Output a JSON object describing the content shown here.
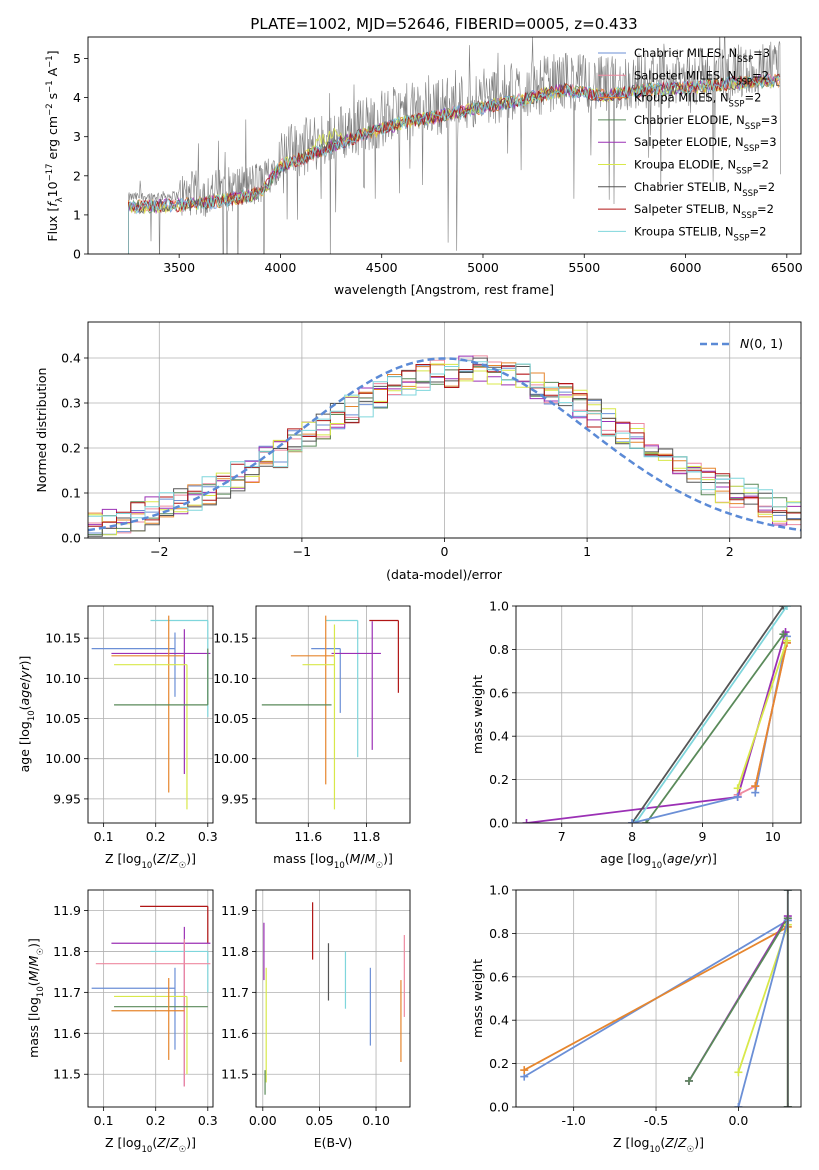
{
  "colors": {
    "Chabrier MILES": "#6b8fd6",
    "Salpeter MILES": "#ee8aa0",
    "Kroupa MILES": "#e6862e",
    "Chabrier ELODIE": "#5a8a5a",
    "Salpeter ELODIE": "#9b30b5",
    "Kroupa ELODIE": "#d8e84a",
    "Chabrier STELIB": "#555555",
    "Salpeter STELIB": "#b01515",
    "Kroupa STELIB": "#7fd6dc",
    "data": "#7f7f7f",
    "gauss": "#5b8ad6"
  },
  "models": [
    {
      "name": "Chabrier MILES",
      "label_main": "Chabrier MILES, N",
      "nssp": "3"
    },
    {
      "name": "Salpeter MILES",
      "label_main": "Salpeter MILES, N",
      "nssp": "2"
    },
    {
      "name": "Kroupa MILES",
      "label_main": "Kroupa MILES, N",
      "nssp": "2"
    },
    {
      "name": "Chabrier ELODIE",
      "label_main": "Chabrier ELODIE, N",
      "nssp": "3"
    },
    {
      "name": "Salpeter ELODIE",
      "label_main": "Salpeter ELODIE, N",
      "nssp": "3"
    },
    {
      "name": "Kroupa ELODIE",
      "label_main": "Kroupa ELODIE, N",
      "nssp": "2"
    },
    {
      "name": "Chabrier STELIB",
      "label_main": "Chabrier STELIB, N",
      "nssp": "2"
    },
    {
      "name": "Salpeter STELIB",
      "label_main": "Salpeter STELIB, N",
      "nssp": "2"
    },
    {
      "name": "Kroupa STELIB",
      "label_main": "Kroupa STELIB, N",
      "nssp": "2"
    }
  ],
  "chart_data": [
    {
      "type": "line",
      "id": "spectrum",
      "title": "PLATE=1002, MJD=52646, FIBERID=0005, z=0.433",
      "xlabel": "wavelength [Angstrom, rest frame]",
      "ylabel": "Flux [f_λ 10^-17 erg cm^-2 s^-1 A^-1]",
      "xlim": [
        3050,
        6570
      ],
      "ylim": [
        0,
        5.55
      ],
      "xticks": [
        3500,
        4000,
        4500,
        5000,
        5500,
        6000,
        6500
      ],
      "yticks": [
        0,
        1,
        2,
        3,
        4,
        5
      ],
      "continuum_knots": [
        [
          3250,
          1.45
        ],
        [
          3500,
          1.5
        ],
        [
          3700,
          1.6
        ],
        [
          3900,
          1.8
        ],
        [
          4000,
          2.5
        ],
        [
          4200,
          2.9
        ],
        [
          4400,
          3.3
        ],
        [
          4600,
          3.6
        ],
        [
          4800,
          3.8
        ],
        [
          5000,
          4.0
        ],
        [
          5200,
          4.2
        ],
        [
          5400,
          4.45
        ],
        [
          5600,
          4.3
        ],
        [
          5800,
          4.45
        ],
        [
          6000,
          4.5
        ],
        [
          6200,
          4.6
        ],
        [
          6470,
          4.7
        ]
      ],
      "legend": "top-right"
    },
    {
      "type": "line",
      "id": "residuals",
      "xlabel": "(data-model)/error",
      "ylabel": "Normed distribution",
      "xlim": [
        -2.5,
        2.5
      ],
      "ylim": [
        0,
        0.48
      ],
      "xticks": [
        -2,
        -1,
        0,
        1,
        2
      ],
      "yticks": [
        0.0,
        0.1,
        0.2,
        0.3,
        0.4
      ],
      "gauss_label": "N(0,1)",
      "legend": "top-right",
      "grid": true
    },
    {
      "type": "scatter",
      "id": "age_vs_Z",
      "xlabel": "Z [log10(Z/Z☉)]",
      "ylabel": "age  [log10(age/yr)]",
      "xlim": [
        0.07,
        0.31
      ],
      "ylim": [
        9.92,
        10.19
      ],
      "xticks": [
        0.1,
        0.2,
        0.3
      ],
      "yticks": [
        9.95,
        10.0,
        10.05,
        10.1,
        10.15
      ],
      "series": [
        {
          "model": "Kroupa STELIB",
          "x": 0.3,
          "xerr": [
            0.11,
            0.0
          ],
          "y": 10.172,
          "yerr": [
            0.12,
            0.0
          ]
        },
        {
          "model": "Chabrier MILES",
          "x": 0.237,
          "xerr": [
            0.16,
            0.0
          ],
          "y": 10.137,
          "yerr": [
            0.06,
            0.02
          ]
        },
        {
          "model": "Salpeter ELODIE",
          "x": 0.255,
          "xerr": [
            0.14,
            0.05
          ],
          "y": 10.131,
          "yerr": [
            0.15,
            0.03
          ]
        },
        {
          "model": "Kroupa MILES",
          "x": 0.225,
          "xerr": [
            0.11,
            0.03
          ],
          "y": 10.128,
          "yerr": [
            0.17,
            0.05
          ]
        },
        {
          "model": "Kroupa ELODIE",
          "x": 0.26,
          "xerr": [
            0.14,
            0.0
          ],
          "y": 10.117,
          "yerr": [
            0.18,
            0.0
          ]
        },
        {
          "model": "Chabrier ELODIE",
          "x": 0.3,
          "xerr": [
            0.18,
            0.0
          ],
          "y": 10.067,
          "yerr": [
            0.0,
            0.07
          ]
        }
      ]
    },
    {
      "type": "scatter",
      "id": "age_vs_mass",
      "xlabel": "mass [log10(M/M☉)]",
      "ylabel": "",
      "xlim": [
        11.42,
        11.95
      ],
      "ylim": [
        9.92,
        10.19
      ],
      "xticks": [
        11.6,
        11.8
      ],
      "yticks": [
        9.95,
        10.0,
        10.05,
        10.1,
        10.15
      ],
      "series": [
        {
          "model": "Kroupa STELIB",
          "x": 11.77,
          "xerr": [
            0.11,
            0.0
          ],
          "y": 10.172,
          "yerr": [
            0.17,
            0.0
          ]
        },
        {
          "model": "Salpeter STELIB",
          "x": 11.91,
          "xerr": [
            0.1,
            0.0
          ],
          "y": 10.172,
          "yerr": [
            0.09,
            0.0
          ]
        },
        {
          "model": "Chabrier MILES",
          "x": 11.71,
          "xerr": [
            0.1,
            0.0
          ],
          "y": 10.137,
          "yerr": [
            0.08,
            0.0
          ]
        },
        {
          "model": "Salpeter ELODIE",
          "x": 11.82,
          "xerr": [
            0.14,
            0.03
          ],
          "y": 10.131,
          "yerr": [
            0.12,
            0.04
          ]
        },
        {
          "model": "Kroupa MILES",
          "x": 11.66,
          "xerr": [
            0.12,
            0.03
          ],
          "y": 10.128,
          "yerr": [
            0.16,
            0.05
          ]
        },
        {
          "model": "Kroupa ELODIE",
          "x": 11.69,
          "xerr": [
            0.11,
            0.0
          ],
          "y": 10.117,
          "yerr": [
            0.18,
            0.05
          ]
        },
        {
          "model": "Chabrier ELODIE",
          "x": 11.66,
          "xerr": [
            0.22,
            0.02
          ],
          "y": 10.067,
          "yerr": [
            0.0,
            0.0
          ]
        }
      ]
    },
    {
      "type": "line",
      "id": "weight_vs_age",
      "xlabel": "age  [log10(age/yr)]",
      "ylabel": "mass weight",
      "xlim": [
        6.35,
        10.4
      ],
      "ylim": [
        0,
        1.0
      ],
      "xticks": [
        7,
        8,
        9,
        10
      ],
      "yticks": [
        0.0,
        0.2,
        0.4,
        0.6,
        0.8,
        1.0
      ],
      "grid": true,
      "series": [
        {
          "model": "Chabrier MILES",
          "x": [
            9.75,
            10.2
          ],
          "y": [
            0.14,
            0.86
          ]
        },
        {
          "model": "Salpeter MILES",
          "x": [
            9.5,
            9.75,
            10.2
          ],
          "y": [
            0.13,
            0.17,
            0.83
          ]
        },
        {
          "model": "Kroupa MILES",
          "x": [
            9.75,
            10.2
          ],
          "y": [
            0.17,
            0.83
          ]
        },
        {
          "model": "Salpeter ELODIE",
          "x": [
            6.5,
            9.5,
            10.18
          ],
          "y": [
            0.0,
            0.12,
            0.88
          ]
        },
        {
          "model": "Chabrier ELODIE",
          "x": [
            8.2,
            10.15
          ],
          "y": [
            0.0,
            0.87
          ]
        },
        {
          "model": "Kroupa ELODIE",
          "x": [
            9.5,
            10.2
          ],
          "y": [
            0.16,
            0.84
          ]
        },
        {
          "model": "Chabrier STELIB",
          "x": [
            8.0,
            10.15
          ],
          "y": [
            0.0,
            1.0
          ]
        },
        {
          "model": "Kroupa STELIB",
          "x": [
            8.05,
            10.2
          ],
          "y": [
            0.0,
            1.0
          ]
        },
        {
          "model": "Chabrier MILES",
          "x": [
            8.0,
            9.5
          ],
          "y": [
            0.0,
            0.12
          ]
        }
      ]
    },
    {
      "type": "scatter",
      "id": "mass_vs_Z",
      "xlabel": "Z [log10(Z/Z☉)]",
      "ylabel": "mass [log10(M/M☉)]",
      "xlim": [
        0.07,
        0.31
      ],
      "ylim": [
        11.42,
        11.95
      ],
      "xticks": [
        0.1,
        0.2,
        0.3
      ],
      "yticks": [
        11.5,
        11.6,
        11.7,
        11.8,
        11.9
      ],
      "series": [
        {
          "model": "Salpeter STELIB",
          "x": 0.3,
          "xerr": [
            0.13,
            0.0
          ],
          "y": 11.91,
          "yerr": [
            0.09,
            0.0
          ]
        },
        {
          "model": "Salpeter ELODIE",
          "x": 0.255,
          "xerr": [
            0.14,
            0.05
          ],
          "y": 11.82,
          "yerr": [
            0.35,
            0.04
          ]
        },
        {
          "model": "Kroupa STELIB",
          "x": 0.3,
          "xerr": [
            0.11,
            0.0
          ],
          "y": 11.8,
          "yerr": [
            0.1,
            0.0
          ]
        },
        {
          "model": "Salpeter MILES",
          "x": 0.255,
          "xerr": [
            0.17,
            0.05
          ],
          "y": 11.77,
          "yerr": [
            0.3,
            0.06
          ]
        },
        {
          "model": "Chabrier MILES",
          "x": 0.237,
          "xerr": [
            0.16,
            0.0
          ],
          "y": 11.71,
          "yerr": [
            0.15,
            0.05
          ]
        },
        {
          "model": "Kroupa ELODIE",
          "x": 0.26,
          "xerr": [
            0.14,
            0.0
          ],
          "y": 11.69,
          "yerr": [
            0.19,
            0.0
          ]
        },
        {
          "model": "Chabrier ELODIE",
          "x": 0.3,
          "xerr": [
            0.18,
            0.0
          ],
          "y": 11.665,
          "yerr": [
            0.0,
            0.0
          ]
        },
        {
          "model": "Kroupa MILES",
          "x": 0.225,
          "xerr": [
            0.11,
            0.03
          ],
          "y": 11.655,
          "yerr": [
            0.12,
            0.08
          ]
        }
      ]
    },
    {
      "type": "scatter",
      "id": "mass_vs_ebv",
      "xlabel": "E(B-V)",
      "ylabel": "",
      "xlim": [
        -0.006,
        0.13
      ],
      "ylim": [
        11.42,
        11.95
      ],
      "xticks": [
        0.0,
        0.05,
        0.1
      ],
      "yticks": [
        11.5,
        11.6,
        11.7,
        11.8,
        11.9
      ],
      "series": [
        {
          "model": "Salpeter STELIB",
          "x": 0.044,
          "y": 11.85,
          "yerr": [
            0.07,
            0.07
          ]
        },
        {
          "model": "Chabrier STELIB",
          "x": 0.058,
          "y": 11.75,
          "yerr": [
            0.07,
            0.07
          ]
        },
        {
          "model": "Kroupa STELIB",
          "x": 0.073,
          "y": 11.73,
          "yerr": [
            0.07,
            0.07
          ]
        },
        {
          "model": "Chabrier MILES",
          "x": 0.095,
          "y": 11.67,
          "yerr": [
            0.1,
            0.09
          ]
        },
        {
          "model": "Salpeter ELODIE",
          "x": 0.001,
          "y": 11.8,
          "yerr": [
            0.07,
            0.07
          ]
        },
        {
          "model": "Kroupa ELODIE",
          "x": 0.003,
          "y": 11.58,
          "yerr": [
            0.1,
            0.18
          ]
        },
        {
          "model": "Salpeter MILES",
          "x": 0.125,
          "y": 11.74,
          "yerr": [
            0.1,
            0.1
          ]
        },
        {
          "model": "Kroupa MILES",
          "x": 0.122,
          "y": 11.63,
          "yerr": [
            0.1,
            0.1
          ]
        },
        {
          "model": "Chabrier ELODIE",
          "x": 0.002,
          "y": 11.48,
          "yerr": [
            0.03,
            0.03
          ]
        }
      ]
    },
    {
      "type": "line",
      "id": "weight_vs_Z",
      "xlabel": "Z [log10(Z/Z☉)]",
      "ylabel": "mass weight",
      "xlim": [
        -1.35,
        0.38
      ],
      "ylim": [
        0,
        1.0
      ],
      "xticks": [
        -1.0,
        -0.5,
        0.0
      ],
      "yticks": [
        0.0,
        0.2,
        0.4,
        0.6,
        0.8,
        1.0
      ],
      "grid": true,
      "series": [
        {
          "model": "Chabrier MILES",
          "x": [
            -1.3,
            0.3
          ],
          "y": [
            0.14,
            0.86
          ]
        },
        {
          "model": "Kroupa MILES",
          "x": [
            -1.3,
            0.3
          ],
          "y": [
            0.17,
            0.83
          ]
        },
        {
          "model": "Salpeter ELODIE",
          "x": [
            -0.3,
            0.3
          ],
          "y": [
            0.12,
            0.88
          ]
        },
        {
          "model": "Chabrier ELODIE",
          "x": [
            -0.3,
            0.3,
            0.3
          ],
          "y": [
            0.12,
            0.87,
            0.0
          ]
        },
        {
          "model": "Kroupa ELODIE",
          "x": [
            0.0,
            0.3,
            0.3
          ],
          "y": [
            0.16,
            0.84,
            0.0
          ]
        },
        {
          "model": "Chabrier MILES",
          "x": [
            0.0,
            0.3
          ],
          "y": [
            0.0,
            0.86
          ]
        },
        {
          "model": "Kroupa STELIB",
          "x": [
            0.3,
            0.3
          ],
          "y": [
            0.0,
            1.0
          ]
        },
        {
          "model": "Chabrier STELIB",
          "x": [
            0.3,
            0.3
          ],
          "y": [
            0.0,
            1.0
          ]
        }
      ]
    }
  ]
}
